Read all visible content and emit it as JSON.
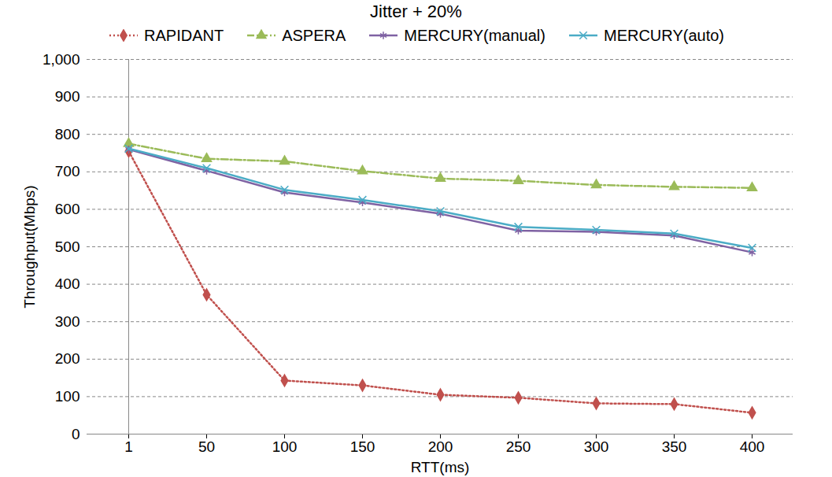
{
  "chart_data": {
    "type": "line",
    "title": "Jitter  + 20%",
    "x_label": "RTT(ms)",
    "y_label": "Throughput(Mbps)",
    "categories": [
      "1",
      "50",
      "100",
      "150",
      "200",
      "250",
      "300",
      "350",
      "400"
    ],
    "series": [
      {
        "name": "RAPIDANT",
        "color": "#c0504d",
        "marker": "diamond",
        "line_style": "dotted",
        "values": [
          755,
          372,
          143,
          130,
          105,
          97,
          82,
          80,
          57
        ]
      },
      {
        "name": "ASPERA",
        "color": "#9bbb59",
        "marker": "triangle",
        "line_style": "dashdot",
        "values": [
          775,
          735,
          728,
          702,
          682,
          676,
          665,
          660,
          657
        ]
      },
      {
        "name": "MERCURY(manual)",
        "color": "#7f62a3",
        "marker": "asterisk",
        "line_style": "solid",
        "values": [
          760,
          703,
          645,
          618,
          588,
          543,
          540,
          530,
          485
        ]
      },
      {
        "name": "MERCURY(auto)",
        "color": "#4bacc6",
        "marker": "times",
        "line_style": "solid",
        "values": [
          762,
          710,
          652,
          625,
          595,
          553,
          545,
          535,
          497
        ]
      }
    ],
    "ylim": [
      0,
      1000
    ],
    "yticks": [
      0,
      100,
      200,
      300,
      400,
      500,
      600,
      700,
      800,
      900,
      1000
    ],
    "grid": true,
    "legend": "top"
  }
}
